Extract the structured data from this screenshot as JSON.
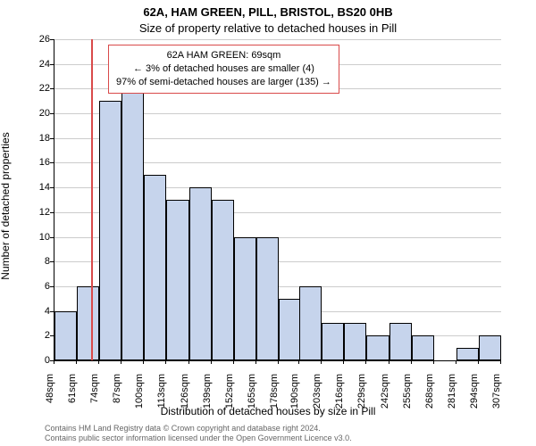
{
  "title_main": "62A, HAM GREEN, PILL, BRISTOL, BS20 0HB",
  "title_sub": "Size of property relative to detached houses in Pill",
  "ylabel": "Number of detached properties",
  "xlabel": "Distribution of detached houses by size in Pill",
  "footer_line1": "Contains HM Land Registry data © Crown copyright and database right 2024.",
  "footer_line2": "Contains public sector information licensed under the Open Government Licence v3.0.",
  "chart": {
    "type": "histogram",
    "y_max": 26,
    "y_ticks": [
      0,
      2,
      4,
      6,
      8,
      10,
      12,
      14,
      16,
      18,
      20,
      22,
      24,
      26
    ],
    "x_ticks": [
      48,
      61,
      74,
      87,
      100,
      113,
      126,
      139,
      152,
      165,
      178,
      190,
      203,
      216,
      229,
      242,
      255,
      268,
      281,
      294,
      307
    ],
    "x_unit": "sqm",
    "bar_fill": "#c6d4ec",
    "bar_stroke": "#000000",
    "grid_color": "#cccccc",
    "background": "#ffffff",
    "bars": [
      {
        "x": 48,
        "h": 4
      },
      {
        "x": 61,
        "h": 6
      },
      {
        "x": 74,
        "h": 21
      },
      {
        "x": 87,
        "h": 22
      },
      {
        "x": 100,
        "h": 15
      },
      {
        "x": 113,
        "h": 13
      },
      {
        "x": 126,
        "h": 14
      },
      {
        "x": 139,
        "h": 13
      },
      {
        "x": 152,
        "h": 10
      },
      {
        "x": 165,
        "h": 10
      },
      {
        "x": 178,
        "h": 5
      },
      {
        "x": 190,
        "h": 6
      },
      {
        "x": 203,
        "h": 3
      },
      {
        "x": 216,
        "h": 3
      },
      {
        "x": 229,
        "h": 2
      },
      {
        "x": 242,
        "h": 3
      },
      {
        "x": 255,
        "h": 2
      },
      {
        "x": 268,
        "h": 0
      },
      {
        "x": 281,
        "h": 1
      },
      {
        "x": 294,
        "h": 2
      }
    ],
    "ref_line": {
      "x": 69,
      "color": "#d94a4a"
    },
    "annotation": {
      "line1": "62A HAM GREEN: 69sqm",
      "line2": "← 3% of detached houses are smaller (4)",
      "line3": "97% of semi-detached houses are larger (135) →",
      "border_color": "#d94a4a"
    }
  }
}
